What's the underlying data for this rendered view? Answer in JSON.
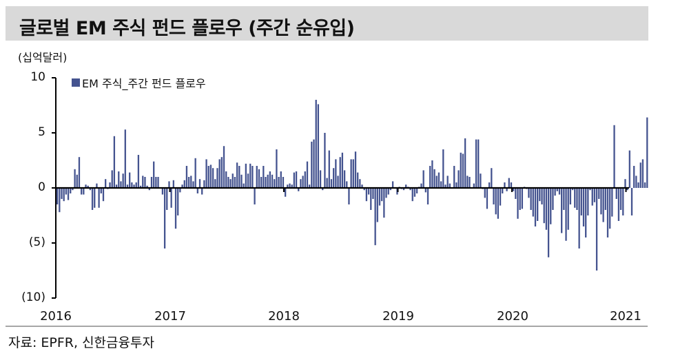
{
  "header": {
    "title": "글로벌 EM 주식 펀드 플로우 (주간 순유입)"
  },
  "chart": {
    "unit_label": "(십억달러)",
    "legend_label": "EM 주식_주간 펀드 플로우",
    "bar_color": "#44538f",
    "y_ticks": [
      {
        "value": 10,
        "label": "10"
      },
      {
        "value": 5,
        "label": "5"
      },
      {
        "value": 0,
        "label": "0"
      },
      {
        "value": -5,
        "label": "(5)"
      },
      {
        "value": -10,
        "label": "(10)"
      }
    ],
    "x_ticks": [
      "2016",
      "2017",
      "2018",
      "2019",
      "2020",
      "2021"
    ]
  },
  "footer": {
    "source": "자료: EPFR, 신한금융투자"
  },
  "chart_data": {
    "type": "bar",
    "title": "글로벌 EM 주식 펀드 플로우 (주간 순유입)",
    "xlabel": "",
    "ylabel": "(십억달러)",
    "ylim": [
      -10,
      10
    ],
    "y_tick_labels": [
      "10",
      "5",
      "0",
      "(5)",
      "(10)"
    ],
    "x_tick_labels": [
      "2016",
      "2017",
      "2018",
      "2019",
      "2020",
      "2021"
    ],
    "legend": [
      "EM 주식_주간 펀드 플로우"
    ],
    "legend_position": "top-left",
    "grid": false,
    "frequency": "weekly",
    "series": [
      {
        "name": "EM 주식_주간 펀드 플로우",
        "years": {
          "2016": [
            -1.5,
            -2.2,
            -1.0,
            -1.2,
            -0.6,
            -1.1,
            -0.5,
            -0.2,
            1.7,
            1.2,
            2.8,
            -0.6,
            -0.6,
            0.3,
            0.2,
            -0.2,
            -2.0,
            -1.8,
            0.4,
            -1.8,
            -0.5,
            -1.2,
            0.8,
            -0.1,
            0.5,
            1.6,
            4.7,
            0.3,
            1.5,
            0.6,
            1.3,
            5.3,
            0.3,
            1.4,
            0.5,
            0.3,
            0.5,
            3.0,
            0.2,
            1.1,
            1.0,
            0.2,
            -0.2,
            1.0,
            2.4,
            1.0,
            1.0,
            0.0,
            -0.6,
            -5.5,
            -2.0,
            0.6
          ],
          "2017": [
            -1.8,
            0.7,
            -3.7,
            -2.5,
            -0.4,
            0.3,
            0.7,
            2.0,
            1.0,
            1.1,
            0.6,
            2.7,
            -0.5,
            0.8,
            -0.6,
            0.7,
            2.6,
            2.0,
            2.1,
            1.8,
            0.8,
            1.8,
            2.6,
            2.8,
            3.8,
            1.5,
            1.0,
            0.8,
            1.3,
            1.0,
            2.3,
            2.0,
            1.2,
            0.4,
            2.2,
            1.3,
            2.2,
            2.0,
            -1.5,
            2.0,
            1.7,
            1.0,
            2.0,
            1.0,
            1.2,
            1.5,
            1.2,
            0.8,
            3.5,
            1.0,
            1.5,
            1.0
          ],
          "2018": [
            -0.8,
            0.3,
            0.4,
            0.3,
            1.4,
            1.5,
            -0.3,
            0.8,
            1.1,
            1.5,
            2.4,
            0.3,
            4.2,
            4.4,
            8.0,
            7.6,
            1.6,
            -0.2,
            5.0,
            0.9,
            3.4,
            0.8,
            1.8,
            2.6,
            1.1,
            2.8,
            3.2,
            1.6,
            0.6,
            -1.5,
            2.6,
            2.6,
            3.3,
            1.4,
            0.8,
            0.3,
            -0.2,
            -1.2,
            -0.6,
            -2.0,
            -1.0,
            -5.2,
            -3.1,
            -1.6,
            -1.2,
            -2.7,
            -0.9,
            -0.6,
            -0.2,
            0.6,
            0.0,
            -0.6
          ],
          "2019": [
            0.1,
            -0.1,
            -0.2,
            0.3,
            0.1,
            -0.2,
            -1.2,
            -0.8,
            -0.5,
            0.1,
            0.4,
            1.6,
            -0.4,
            -1.5,
            2.0,
            2.5,
            1.7,
            1.1,
            1.4,
            0.6,
            3.5,
            0.3,
            1.1,
            0.4,
            0.0,
            2.0,
            0.5,
            1.6,
            3.2,
            3.1,
            4.5,
            1.1,
            1.0,
            0.0,
            0.4,
            4.4,
            4.4,
            1.3,
            -0.1,
            -0.9,
            -1.9,
            0.5,
            1.8,
            -1.5,
            -2.4,
            -2.8,
            -1.6,
            -0.5,
            0.5,
            -0.3,
            0.9,
            0.5
          ],
          "2020": [
            -0.3,
            -1.0,
            -2.8,
            -2.0,
            -1.9,
            0.1,
            -0.1,
            -0.9,
            -2.0,
            -2.6,
            -3.5,
            -3.0,
            -1.2,
            -1.5,
            -3.2,
            -3.8,
            -6.3,
            -3.3,
            -2.0,
            -0.7,
            -0.3,
            -0.6,
            -4.1,
            -2.0,
            -4.8,
            -3.8,
            -1.5,
            -0.2,
            -1.8,
            -2.0,
            -5.5,
            -2.5,
            -3.5,
            -4.5,
            -2.5,
            -0.2,
            -1.6,
            -1.3,
            -7.5,
            -1.0,
            -2.4,
            -3.1,
            -2.0,
            -4.5,
            -3.7,
            -2.6,
            5.7,
            -1.0,
            -3.0,
            -2.0,
            -2.5,
            0.8,
            -0.2,
            3.4,
            -2.5,
            2.0,
            1.1,
            0.5,
            2.3,
            2.6,
            0.5,
            6.4
          ]
        }
      }
    ]
  }
}
